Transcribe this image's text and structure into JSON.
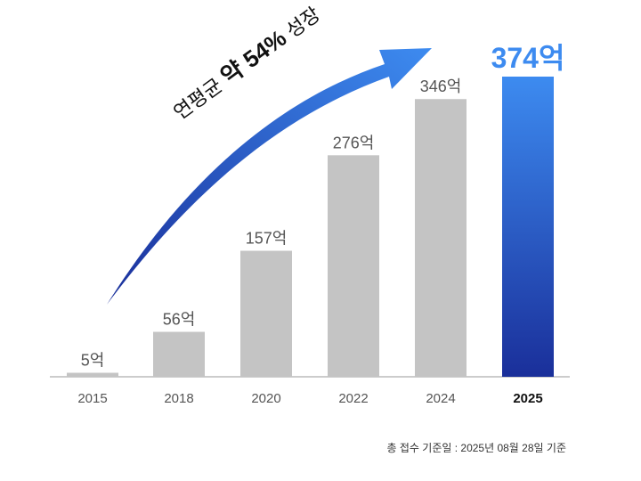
{
  "chart_data": {
    "type": "bar",
    "categories": [
      "2015",
      "2018",
      "2020",
      "2022",
      "2024",
      "2025"
    ],
    "values": [
      5,
      56,
      157,
      276,
      346,
      374
    ],
    "data_labels": [
      "5억",
      "56억",
      "157억",
      "276억",
      "346억",
      "374억"
    ],
    "highlight": "2025",
    "ylim": [
      0,
      374
    ],
    "annotation": {
      "prefix": "연평균",
      "bold": "약 54%",
      "suffix": "성장"
    },
    "colors": {
      "bar": "#c4c4c4",
      "highlight_top": "#3d8bf0",
      "highlight_bottom": "#1a2f9a",
      "label": "#555555",
      "highlight_label": "#3d8bf0"
    }
  },
  "footnote": "총 접수 기준일 : 2025년 08월 28일 기준"
}
